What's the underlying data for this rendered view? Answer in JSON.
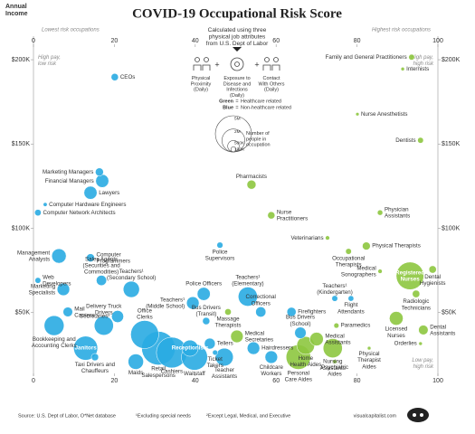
{
  "chart_data": {
    "type": "bubble",
    "title": "COVID-19 Occupational Risk Score",
    "subtitle": "Calculated using three\nphysical job attributes\nfrom U.S. Dept of Labor",
    "factors": [
      "Physical\nProximity\n(Daily)",
      "Exposure to\nDisease and\nInfections\n(Daily)",
      "Contact\nWith Others\n(Daily)"
    ],
    "operator": "+",
    "y_axis_label": "Annual\nIncome",
    "x_low_note": "Lowest risk occupations",
    "x_high_note": "Highest risk occupations",
    "corner_notes": {
      "top_left": "High pay,\nlow risk",
      "top_right": "High pay,\nhigh risk",
      "bottom_right": "Low pay,\nhigh risk"
    },
    "legend_separator": "=",
    "xlim": [
      0,
      100
    ],
    "xticks": [
      0,
      20,
      40,
      60,
      80,
      100
    ],
    "ylim": [
      15000,
      207000
    ],
    "yticks": [
      {
        "value": 50000,
        "label": "$50K"
      },
      {
        "value": 100000,
        "label": "$100K"
      },
      {
        "value": 150000,
        "label": "$150K"
      },
      {
        "value": 200000,
        "label": "$200K"
      }
    ],
    "size_legend": {
      "title": "Number of\npeople in\noccupation",
      "values": [
        {
          "value": 5000000,
          "label": "5M"
        },
        {
          "value": 2000000,
          "label": "2M"
        },
        {
          "value": 500000,
          "label": "500K"
        },
        {
          "value": 100000,
          "label": "100K"
        }
      ]
    },
    "series": [
      {
        "name": "Healthcare related",
        "color_word": "Green",
        "color": "#8dc63f",
        "labels": [
          "Family and General Practitioners",
          "Internists",
          "Nurse Anesthetists",
          "Dentists",
          "Pharmacists",
          "Physician\nAssistants",
          "Nurse\nPractitioners",
          "Veterinarians",
          "Physical Therapists",
          "Occupational\nTherapists",
          "Registered\nNurses",
          "Dental\nHygienists",
          "Medical\nSonographers",
          "Radiologic\nTechnicians",
          "Massage\nTherapists",
          "Medical\nSecretaries",
          "Licensed\nNurses",
          "Paramedics",
          "Medical\nAssistants",
          "Dental\nAssistants",
          "Personal\nCare Aides",
          "Home\nHealth Aides",
          "Nursing\nAssistants",
          "Psychiatric\nAides",
          "Physical\nTherapist\nAides",
          "Orderlies"
        ],
        "x": [
          93.5,
          91.3,
          80.1,
          95.7,
          53.9,
          85.7,
          58.8,
          72.7,
          82.3,
          77.9,
          93.1,
          98.7,
          85.7,
          94.6,
          48.1,
          50.3,
          89.7,
          74.9,
          70,
          96.4,
          65.5,
          67.3,
          74,
          74.5,
          83,
          95.7
        ],
        "values": [
          201500,
          194500,
          167700,
          152200,
          125900,
          109300,
          107700,
          94300,
          89500,
          86300,
          71800,
          75600,
          74500,
          61100,
          50400,
          35900,
          46600,
          42300,
          34300,
          39700,
          23600,
          30500,
          28900,
          20900,
          28900,
          31600
        ],
        "sizes": [
          130000,
          50000,
          45000,
          130000,
          310000,
          110000,
          200000,
          70000,
          240000,
          130000,
          2900000,
          210000,
          70000,
          210000,
          160000,
          600000,
          720000,
          100000,
          700000,
          350000,
          2300000,
          1200000,
          1400000,
          60000,
          50000,
          50000
        ]
      },
      {
        "name": "Non-healthcare related",
        "color_word": "Blue",
        "color": "#29abe2",
        "labels": [
          "CEOs",
          "Marketing Managers",
          "Financial Managers",
          "Lawyers",
          "Computer Hardware Engineers",
          "Computer Network Architects",
          "Police\nSupervisors",
          "Management\nAnalysts",
          "Computer\nProgrammers",
          "Web\nDevelopers",
          "Marketing\nSpecialists",
          "Sales Agents\n(Securities and\nCommodities)",
          "Teachers¹\n(Secondary School)",
          "Police Officers",
          "Teachers¹\n(Middle School)",
          "Teachers¹\n(Elementary)",
          "Teachers¹\n(Kindergarten)",
          "Flight\nAttendants",
          "Mail\nCarriers",
          "Secretaries²",
          "Correctional\nOfficers",
          "Firefighters",
          "Bus Drivers\n(Transit)",
          "Bookkeeping and\nAccounting Clerks",
          "Delivery Truck\nDrivers",
          "Office\nClerks",
          "Janitors",
          "Bus Drivers\n(School)",
          "Receptionists",
          "Tellers",
          "Hairdressers",
          "Retail\nSalespersons",
          "Cashiers",
          "Maids",
          "Taxi Drivers and\nChauffeurs",
          "Waitstaff",
          "Ticket\nTakers",
          "Teacher\nAssistants",
          "Childcare\nWorkers"
        ],
        "x": [
          20.1,
          16.3,
          17,
          14.1,
          2.9,
          1.1,
          46.1,
          6.3,
          14.1,
          1.1,
          7.4,
          16.8,
          24.2,
          42.1,
          39.4,
          53,
          74.5,
          78.5,
          8.5,
          20.8,
          56.2,
          63.8,
          42.7,
          5.1,
          17.4,
          27.5,
          12.9,
          66,
          38.7,
          43.6,
          54.4,
          30.9,
          34.2,
          25.3,
          15.2,
          39.8,
          44.9,
          47.2,
          58.8
        ],
        "values": [
          189700,
          133400,
          128100,
          121100,
          114100,
          109300,
          90000,
          83600,
          82500,
          69100,
          63800,
          69100,
          63800,
          61100,
          55700,
          59500,
          58400,
          58400,
          50400,
          47700,
          50400,
          50400,
          45000,
          42300,
          42300,
          37000,
          28900,
          38000,
          28900,
          31600,
          28900,
          28900,
          26300,
          20900,
          23600,
          23600,
          26300,
          23600,
          23600
        ],
        "sizes": [
          200000,
          250000,
          650000,
          650000,
          60000,
          160000,
          140000,
          800000,
          250000,
          130000,
          600000,
          400000,
          1000000,
          650000,
          600000,
          1400000,
          130000,
          120000,
          350000,
          550000,
          400000,
          320000,
          200000,
          1500000,
          1400000,
          3000000,
          2200000,
          500000,
          1000000,
          450000,
          600000,
          4300000,
          3600000,
          900000,
          200000,
          2600000,
          100000,
          1200000,
          600000
        ]
      }
    ],
    "source": "Source: U.S. Dept of Labor, O*Net database",
    "footnotes": [
      "¹Excluding special needs",
      "²Except Legal, Medical, and Executive"
    ],
    "credit": "visualcapitalist.com"
  }
}
